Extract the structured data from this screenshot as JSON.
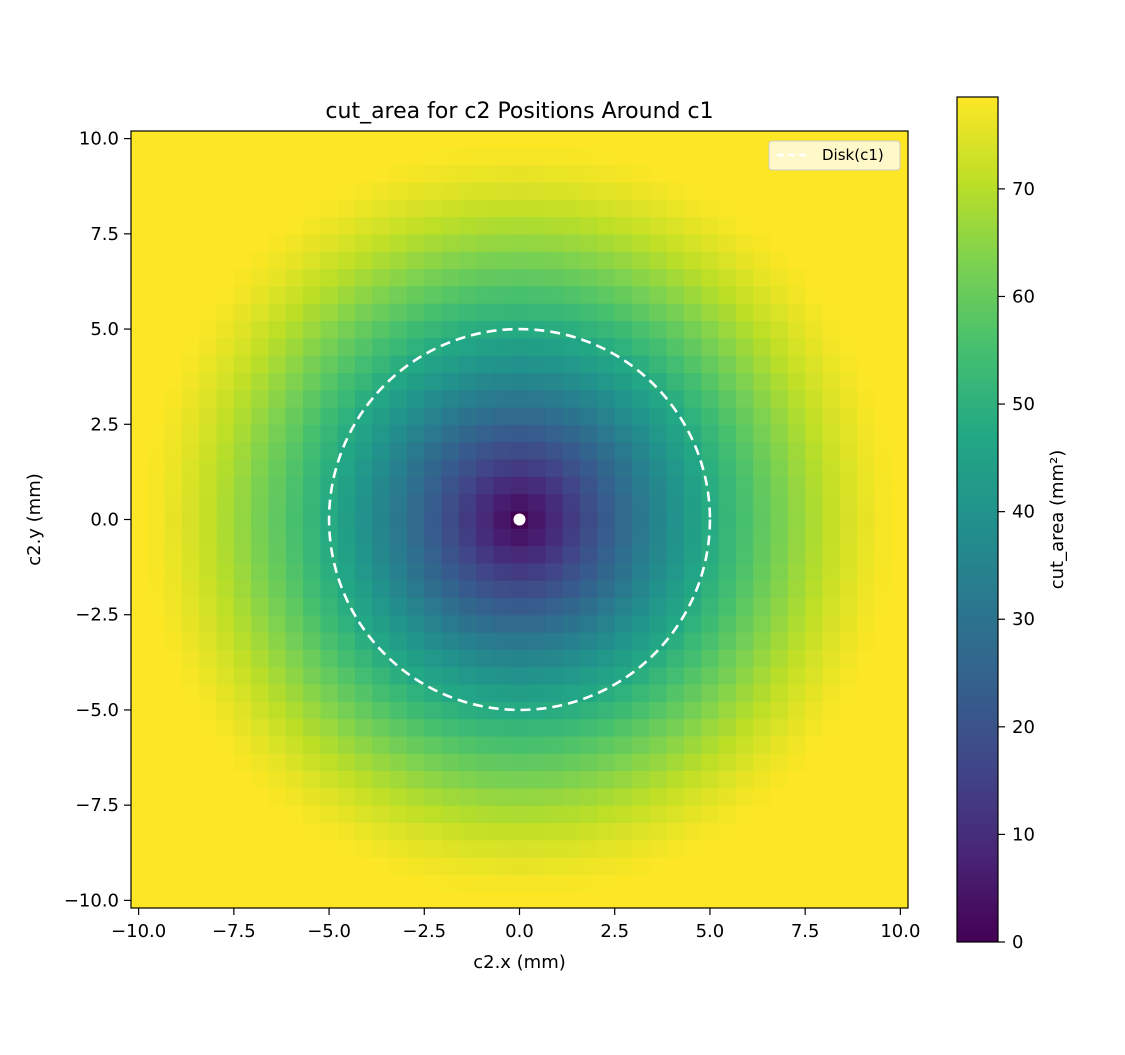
{
  "chart_data": {
    "type": "heatmap",
    "title": "cut_area for c2 Positions Around c1",
    "xlabel": "c2.x (mm)",
    "ylabel": "c2.y (mm)",
    "xlim": [
      -10.2,
      10.2
    ],
    "ylim": [
      -10.2,
      10.2
    ],
    "x_ticks": [
      -10.0,
      -7.5,
      -5.0,
      -2.5,
      0.0,
      2.5,
      5.0,
      7.5,
      10.0
    ],
    "y_ticks": [
      -10.0,
      -7.5,
      -5.0,
      -2.5,
      0.0,
      2.5,
      5.0,
      7.5,
      10.0
    ],
    "x_tick_labels": [
      "−10.0",
      "−7.5",
      "−5.0",
      "−2.5",
      "0.0",
      "2.5",
      "5.0",
      "7.5",
      "10.0"
    ],
    "y_tick_labels": [
      "10.0",
      "7.5",
      "5.0",
      "2.5",
      "0.0",
      "−2.5",
      "−5.0",
      "−7.5",
      "−10.0"
    ],
    "grid": {
      "x_range": [
        -10.0,
        10.0
      ],
      "y_range": [
        -10.0,
        10.0
      ],
      "n": 45,
      "disk_radius": 5.0,
      "value_model": "cut_area = area of Disk(c1) union Disk(c2) minus area of Disk(c2) overlap, radius 5 mm; 0 at center, 78.54 when disjoint"
    },
    "colorbar": {
      "label": "cut_area (mm²)",
      "colormap": "viridis",
      "vmin": 0,
      "vmax": 78.54,
      "ticks": [
        0,
        10,
        20,
        30,
        40,
        50,
        60,
        70
      ],
      "tick_labels": [
        "0",
        "10",
        "20",
        "30",
        "40",
        "50",
        "60",
        "70"
      ]
    },
    "overlays": {
      "circle": {
        "label": "Disk(c1)",
        "center": [
          0.0,
          0.0
        ],
        "radius": 5.0,
        "style": "dashed",
        "color": "#ffffff"
      },
      "center_point": {
        "x": 0.0,
        "y": 0.0,
        "color": "#ffffff"
      }
    },
    "legend": {
      "entries": [
        "Disk(c1)"
      ],
      "placement": "top-right"
    }
  }
}
